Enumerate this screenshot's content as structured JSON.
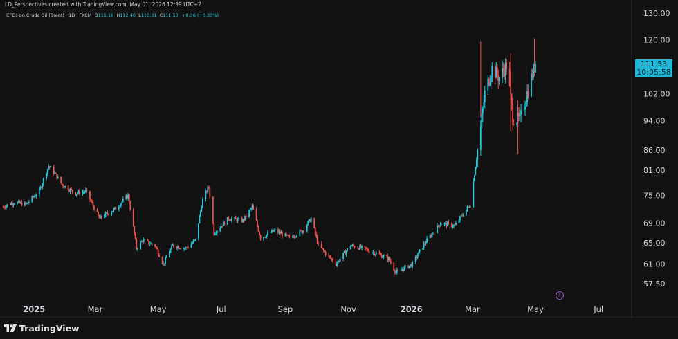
{
  "header": {
    "credit": "LD_Perspectives created with TradingView.com, May 01, 2026 12:39 UTC+2",
    "symbol": "CFDs on Crude Oil (Brent) · 1D · FXCM",
    "o_label": "O",
    "o_value": "111.16",
    "h_label": "H",
    "h_value": "112.40",
    "l_label": "L",
    "l_value": "110.31",
    "c_label": "C",
    "c_value": "111.53",
    "change": "+0.36 (+0.33%)"
  },
  "price_tag": {
    "price": "111.53",
    "countdown": "10:05:58"
  },
  "chart_data": {
    "type": "candlestick",
    "title": "CFDs on Crude Oil (Brent) · 1D · FXCM",
    "y_scale": "log",
    "ylim": [
      54.5,
      130.0
    ],
    "y_ticks": [
      "130.00",
      "120.00",
      "102.00",
      "94.00",
      "86.00",
      "81.00",
      "75.00",
      "69.00",
      "65.00",
      "61.00",
      "57.50"
    ],
    "x_ticks": [
      {
        "label": "2025",
        "date": "2025-01-01",
        "bold": true
      },
      {
        "label": "Mar",
        "date": "2025-03-01",
        "bold": false
      },
      {
        "label": "May",
        "date": "2025-05-01",
        "bold": false
      },
      {
        "label": "Jul",
        "date": "2025-07-01",
        "bold": false
      },
      {
        "label": "Sep",
        "date": "2025-09-01",
        "bold": false
      },
      {
        "label": "Nov",
        "date": "2025-11-01",
        "bold": false
      },
      {
        "label": "2026",
        "date": "2026-01-01",
        "bold": true
      },
      {
        "label": "Mar",
        "date": "2026-03-01",
        "bold": false
      },
      {
        "label": "May",
        "date": "2026-05-01",
        "bold": false
      },
      {
        "label": "Jul",
        "date": "2026-07-01",
        "bold": false
      }
    ],
    "x_range": [
      "2024-11-29",
      "2026-07-31"
    ],
    "up_color": "#26c6da",
    "down_color": "#ef5350",
    "last_close": 111.53,
    "approx_close_series": [
      [
        "2024-12-02",
        72.5
      ],
      [
        "2024-12-12",
        73.5
      ],
      [
        "2024-12-24",
        73.0
      ],
      [
        "2025-01-06",
        76.0
      ],
      [
        "2025-01-15",
        82.0
      ],
      [
        "2025-01-20",
        80.5
      ],
      [
        "2025-01-28",
        77.5
      ],
      [
        "2025-02-10",
        75.5
      ],
      [
        "2025-02-20",
        76.0
      ],
      [
        "2025-03-05",
        70.0
      ],
      [
        "2025-03-20",
        72.0
      ],
      [
        "2025-04-02",
        75.0
      ],
      [
        "2025-04-10",
        64.0
      ],
      [
        "2025-04-16",
        65.5
      ],
      [
        "2025-04-28",
        64.5
      ],
      [
        "2025-05-06",
        61.0
      ],
      [
        "2025-05-15",
        64.5
      ],
      [
        "2025-05-28",
        64.0
      ],
      [
        "2025-06-06",
        65.5
      ],
      [
        "2025-06-13",
        74.0
      ],
      [
        "2025-06-19",
        77.0
      ],
      [
        "2025-06-24",
        67.0
      ],
      [
        "2025-07-08",
        70.0
      ],
      [
        "2025-07-22",
        69.5
      ],
      [
        "2025-07-31",
        72.5
      ],
      [
        "2025-08-08",
        66.0
      ],
      [
        "2025-08-22",
        67.5
      ],
      [
        "2025-09-05",
        66.0
      ],
      [
        "2025-09-18",
        67.5
      ],
      [
        "2025-09-26",
        70.0
      ],
      [
        "2025-10-03",
        64.5
      ],
      [
        "2025-10-20",
        61.0
      ],
      [
        "2025-11-03",
        64.5
      ],
      [
        "2025-11-14",
        64.0
      ],
      [
        "2025-11-28",
        63.0
      ],
      [
        "2025-12-10",
        62.0
      ],
      [
        "2025-12-17",
        59.5
      ],
      [
        "2026-01-02",
        61.0
      ],
      [
        "2026-01-14",
        65.0
      ],
      [
        "2026-01-29",
        69.0
      ],
      [
        "2026-02-12",
        68.5
      ],
      [
        "2026-02-20",
        71.0
      ],
      [
        "2026-02-27",
        73.0
      ],
      [
        "2026-03-04",
        82.0
      ],
      [
        "2026-03-09",
        92.0
      ],
      [
        "2026-03-13",
        102.0
      ],
      [
        "2026-03-20",
        110.0
      ],
      [
        "2026-03-27",
        107.0
      ],
      [
        "2026-04-03",
        111.0
      ],
      [
        "2026-04-09",
        95.0
      ],
      [
        "2026-04-16",
        94.0
      ],
      [
        "2026-04-22",
        101.0
      ],
      [
        "2026-04-27",
        107.0
      ],
      [
        "2026-05-01",
        111.53
      ]
    ],
    "notable_wicks": [
      [
        "2026-03-09",
        119.5,
        95.0
      ],
      [
        "2026-04-07",
        115.0,
        91.0
      ],
      [
        "2026-04-14",
        100.0,
        85.0
      ],
      [
        "2026-04-30",
        120.5,
        108.0
      ]
    ]
  },
  "footer": {
    "brand": "TradingView"
  },
  "icons": {
    "brand": "tradingview-logo-icon",
    "alert": "lightning-icon"
  }
}
